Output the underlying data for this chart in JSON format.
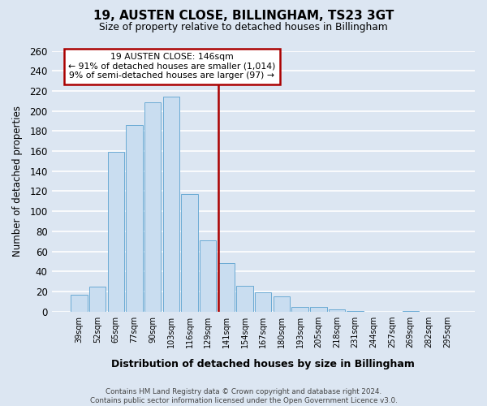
{
  "title": "19, AUSTEN CLOSE, BILLINGHAM, TS23 3GT",
  "subtitle": "Size of property relative to detached houses in Billingham",
  "xlabel": "Distribution of detached houses by size in Billingham",
  "ylabel": "Number of detached properties",
  "bar_labels": [
    "39sqm",
    "52sqm",
    "65sqm",
    "77sqm",
    "90sqm",
    "103sqm",
    "116sqm",
    "129sqm",
    "141sqm",
    "154sqm",
    "167sqm",
    "180sqm",
    "193sqm",
    "205sqm",
    "218sqm",
    "231sqm",
    "244sqm",
    "257sqm",
    "269sqm",
    "282sqm",
    "295sqm"
  ],
  "bar_values": [
    17,
    25,
    159,
    186,
    209,
    214,
    117,
    71,
    48,
    26,
    19,
    15,
    5,
    5,
    2,
    1,
    0,
    0,
    1,
    0,
    0
  ],
  "bar_color": "#c9ddf0",
  "bar_edge_color": "#6aaad4",
  "background_color": "#dce6f2",
  "grid_color": "#ffffff",
  "annotation_box_color": "#ffffff",
  "annotation_box_edge_color": "#aa0000",
  "annotation_line_color": "#aa0000",
  "annotation_text_line1": "19 AUSTEN CLOSE: 146sqm",
  "annotation_text_line2": "← 91% of detached houses are smaller (1,014)",
  "annotation_text_line3": "9% of semi-detached houses are larger (97) →",
  "ylim": [
    0,
    260
  ],
  "yticks": [
    0,
    20,
    40,
    60,
    80,
    100,
    120,
    140,
    160,
    180,
    200,
    220,
    240,
    260
  ],
  "footer_line1": "Contains HM Land Registry data © Crown copyright and database right 2024.",
  "footer_line2": "Contains public sector information licensed under the Open Government Licence v3.0."
}
